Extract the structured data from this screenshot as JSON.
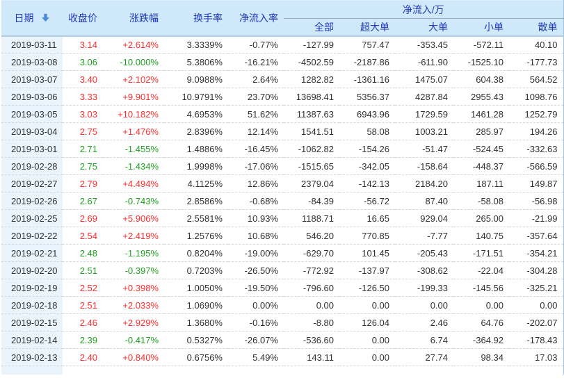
{
  "table": {
    "group_header": "净流入/万",
    "columns": {
      "date": "日期",
      "close": "收盘价",
      "change": "涨跌幅",
      "turnover": "换手率",
      "inflow_rate": "净流入率",
      "all": "全部",
      "super_large": "超大单",
      "large": "大单",
      "small": "小单",
      "retail": "散单"
    },
    "sort": {
      "column": "日期",
      "direction": "desc"
    },
    "colors": {
      "up": "#ff2d2d",
      "down": "#21a121",
      "header_text": "#2138bc",
      "header_bg": "#cfe9fa",
      "date_cell_bg": "#e9f4fc",
      "sort_arrow": "#4a8ad8"
    },
    "rows": [
      {
        "date": "2019-03-11",
        "close": "3.14",
        "change": "+2.614%",
        "turnover": "3.3339%",
        "inflow_rate": "-0.77%",
        "all": "-127.99",
        "super_large": "757.47",
        "large": "-353.45",
        "small": "-572.11",
        "retail": "40.10",
        "trend": "up"
      },
      {
        "date": "2019-03-08",
        "close": "3.06",
        "change": "-10.000%",
        "turnover": "5.3806%",
        "inflow_rate": "-16.21%",
        "all": "-4502.59",
        "super_large": "-2187.86",
        "large": "-611.90",
        "small": "-1525.10",
        "retail": "-177.73",
        "trend": "down"
      },
      {
        "date": "2019-03-07",
        "close": "3.40",
        "change": "+2.102%",
        "turnover": "9.0988%",
        "inflow_rate": "2.64%",
        "all": "1282.82",
        "super_large": "-1361.16",
        "large": "1475.07",
        "small": "604.38",
        "retail": "564.52",
        "trend": "up"
      },
      {
        "date": "2019-03-06",
        "close": "3.33",
        "change": "+9.901%",
        "turnover": "10.9791%",
        "inflow_rate": "23.70%",
        "all": "13698.41",
        "super_large": "5356.37",
        "large": "4287.84",
        "small": "2955.43",
        "retail": "1098.76",
        "trend": "up"
      },
      {
        "date": "2019-03-05",
        "close": "3.03",
        "change": "+10.182%",
        "turnover": "4.6953%",
        "inflow_rate": "51.62%",
        "all": "11387.63",
        "super_large": "6943.96",
        "large": "1729.59",
        "small": "1461.28",
        "retail": "1252.79",
        "trend": "up"
      },
      {
        "date": "2019-03-04",
        "close": "2.75",
        "change": "+1.476%",
        "turnover": "2.8396%",
        "inflow_rate": "12.14%",
        "all": "1541.51",
        "super_large": "58.08",
        "large": "1003.21",
        "small": "285.97",
        "retail": "194.26",
        "trend": "up"
      },
      {
        "date": "2019-03-01",
        "close": "2.71",
        "change": "-1.455%",
        "turnover": "1.4886%",
        "inflow_rate": "-16.45%",
        "all": "-1062.82",
        "super_large": "-154.26",
        "large": "-51.47",
        "small": "-524.45",
        "retail": "-332.63",
        "trend": "down"
      },
      {
        "date": "2019-02-28",
        "close": "2.75",
        "change": "-1.434%",
        "turnover": "1.9998%",
        "inflow_rate": "-17.06%",
        "all": "-1515.65",
        "super_large": "-342.05",
        "large": "-158.64",
        "small": "-448.37",
        "retail": "-566.59",
        "trend": "down"
      },
      {
        "date": "2019-02-27",
        "close": "2.79",
        "change": "+4.494%",
        "turnover": "4.1125%",
        "inflow_rate": "12.86%",
        "all": "2379.04",
        "super_large": "-142.13",
        "large": "2184.20",
        "small": "187.11",
        "retail": "149.87",
        "trend": "up"
      },
      {
        "date": "2019-02-26",
        "close": "2.67",
        "change": "-0.743%",
        "turnover": "2.8586%",
        "inflow_rate": "-0.68%",
        "all": "-84.39",
        "super_large": "-56.72",
        "large": "87.40",
        "small": "-58.08",
        "retail": "-56.98",
        "trend": "down"
      },
      {
        "date": "2019-02-25",
        "close": "2.69",
        "change": "+5.906%",
        "turnover": "2.5581%",
        "inflow_rate": "10.93%",
        "all": "1188.71",
        "super_large": "16.65",
        "large": "929.04",
        "small": "265.00",
        "retail": "-21.99",
        "trend": "up"
      },
      {
        "date": "2019-02-22",
        "close": "2.54",
        "change": "+2.419%",
        "turnover": "1.2576%",
        "inflow_rate": "10.68%",
        "all": "546.20",
        "super_large": "770.85",
        "large": "-7.77",
        "small": "140.75",
        "retail": "-357.64",
        "trend": "up"
      },
      {
        "date": "2019-02-21",
        "close": "2.48",
        "change": "-1.195%",
        "turnover": "0.8204%",
        "inflow_rate": "-19.00%",
        "all": "-629.70",
        "super_large": "101.45",
        "large": "-205.43",
        "small": "-171.51",
        "retail": "-354.21",
        "trend": "down"
      },
      {
        "date": "2019-02-20",
        "close": "2.51",
        "change": "-0.397%",
        "turnover": "0.7203%",
        "inflow_rate": "-26.50%",
        "all": "-772.92",
        "super_large": "-137.97",
        "large": "-308.62",
        "small": "-22.04",
        "retail": "-304.28",
        "trend": "down"
      },
      {
        "date": "2019-02-19",
        "close": "2.52",
        "change": "+0.398%",
        "turnover": "1.0050%",
        "inflow_rate": "-19.50%",
        "all": "-796.60",
        "super_large": "-126.50",
        "large": "-199.33",
        "small": "-145.56",
        "retail": "-325.21",
        "trend": "up"
      },
      {
        "date": "2019-02-18",
        "close": "2.51",
        "change": "+2.033%",
        "turnover": "1.0690%",
        "inflow_rate": "0.00%",
        "all": "0.00",
        "super_large": "0.00",
        "large": "0.00",
        "small": "0.00",
        "retail": "0.00",
        "trend": "up"
      },
      {
        "date": "2019-02-15",
        "close": "2.46",
        "change": "+2.929%",
        "turnover": "1.3680%",
        "inflow_rate": "-0.16%",
        "all": "-8.80",
        "super_large": "126.04",
        "large": "2.46",
        "small": "64.76",
        "retail": "-202.07",
        "trend": "up"
      },
      {
        "date": "2019-02-14",
        "close": "2.39",
        "change": "-0.417%",
        "turnover": "0.5327%",
        "inflow_rate": "-26.07%",
        "all": "-536.60",
        "super_large": "0.00",
        "large": "6.74",
        "small": "-364.92",
        "retail": "-178.43",
        "trend": "down"
      },
      {
        "date": "2019-02-13",
        "close": "2.40",
        "change": "+0.840%",
        "turnover": "0.6756%",
        "inflow_rate": "5.49%",
        "all": "143.11",
        "super_large": "0.00",
        "large": "27.74",
        "small": "98.34",
        "retail": "17.03",
        "trend": "up"
      }
    ]
  }
}
